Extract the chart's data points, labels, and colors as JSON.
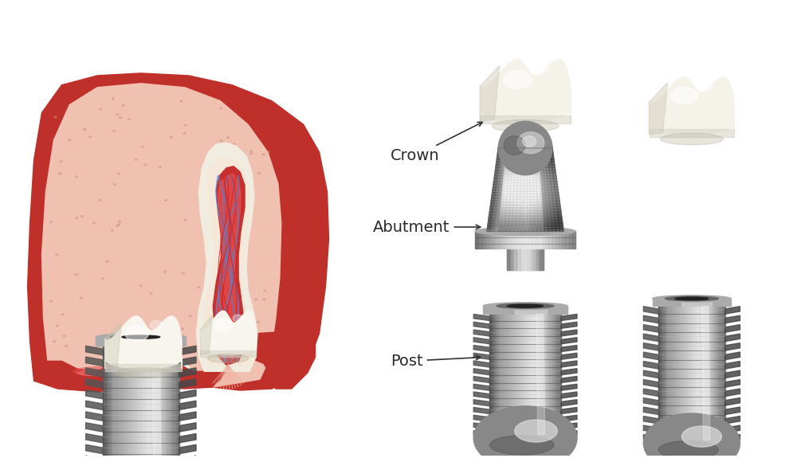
{
  "background_color": "#ffffff",
  "labels": {
    "crown": "Crown",
    "abutment": "Abutment",
    "post": "Post"
  },
  "text_color": "#2a2a2a",
  "label_fontsize": 14,
  "arrow_color": "#333333",
  "gum_dark": "#c0302a",
  "gum_light": "#e8aea0",
  "bone_color": "#f0c8b8",
  "tooth_color": "#f5f0e8",
  "metal_dark": "#5a5a5a",
  "metal_mid": "#888888",
  "metal_light": "#cccccc",
  "metal_highlight": "#e8e8e8"
}
